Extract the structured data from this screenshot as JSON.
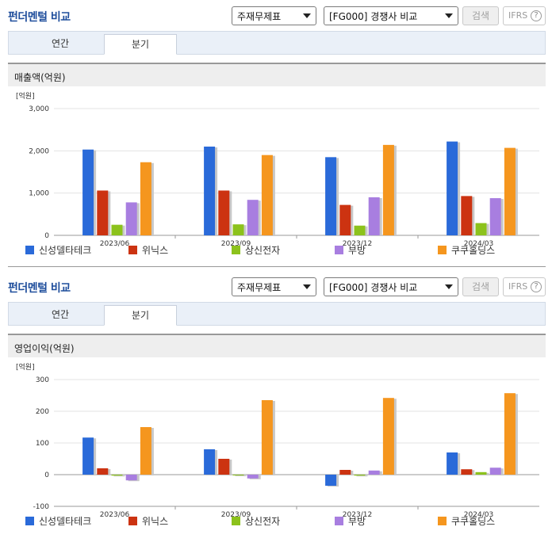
{
  "panels": [
    {
      "header": {
        "title": "펀더멘털 비교",
        "statement_select": "주재무제표",
        "compare_select": "[FG000] 경쟁사 비교",
        "search_label": "검색",
        "ifrs_label": "IFRS",
        "help_glyph": "?"
      },
      "tabs": [
        {
          "label": "연간",
          "active": false
        },
        {
          "label": "분기",
          "active": true
        }
      ],
      "metric_label": "매출액(억원)"
    },
    {
      "header": {
        "title": "펀더멘털 비교",
        "statement_select": "주재무제표",
        "compare_select": "[FG000] 경쟁사 비교",
        "search_label": "검색",
        "ifrs_label": "IFRS",
        "help_glyph": "?"
      },
      "tabs": [
        {
          "label": "연간",
          "active": false
        },
        {
          "label": "분기",
          "active": true
        }
      ],
      "metric_label": "영업이익(억원)"
    }
  ],
  "colors": {
    "신성델타테크": "#2a6ad9",
    "위닉스": "#cc3311",
    "상신전자": "#8cc21c",
    "부방": "#a87ee0",
    "쿠쿠홀딩스": "#f5961e"
  },
  "chart_data": [
    {
      "type": "bar",
      "unit_label": "[억원]",
      "categories": [
        "2023/06",
        "2023/09",
        "2023/12",
        "2024/03"
      ],
      "ylim": [
        0,
        3000
      ],
      "yticks": [
        0,
        1000,
        2000,
        3000
      ],
      "ytick_labels": [
        "0",
        "1,000",
        "2,000",
        "3,000"
      ],
      "legend_position": "bottom",
      "grid": true,
      "series": [
        {
          "name": "신성델타테크",
          "values": [
            2030,
            2100,
            1850,
            2220
          ]
        },
        {
          "name": "위닉스",
          "values": [
            1060,
            1060,
            720,
            930
          ]
        },
        {
          "name": "상신전자",
          "values": [
            250,
            260,
            230,
            290
          ]
        },
        {
          "name": "부방",
          "values": [
            780,
            840,
            900,
            880
          ]
        },
        {
          "name": "쿠쿠홀딩스",
          "values": [
            1730,
            1900,
            2140,
            2070
          ]
        }
      ]
    },
    {
      "type": "bar",
      "unit_label": "[억원]",
      "categories": [
        "2023/06",
        "2023/09",
        "2023/12",
        "2024/03"
      ],
      "ylim": [
        -100,
        300
      ],
      "yticks": [
        -100,
        0,
        100,
        200,
        300
      ],
      "ytick_labels": [
        "-100",
        "0",
        "100",
        "200",
        "300"
      ],
      "legend_position": "bottom",
      "grid": true,
      "series": [
        {
          "name": "신성델타테크",
          "values": [
            117,
            80,
            -35,
            70
          ]
        },
        {
          "name": "위닉스",
          "values": [
            20,
            50,
            15,
            17
          ]
        },
        {
          "name": "상신전자",
          "values": [
            -3,
            -2,
            -3,
            8
          ]
        },
        {
          "name": "부방",
          "values": [
            -18,
            -12,
            13,
            22
          ]
        },
        {
          "name": "쿠쿠홀딩스",
          "values": [
            150,
            235,
            242,
            257
          ]
        }
      ]
    }
  ]
}
